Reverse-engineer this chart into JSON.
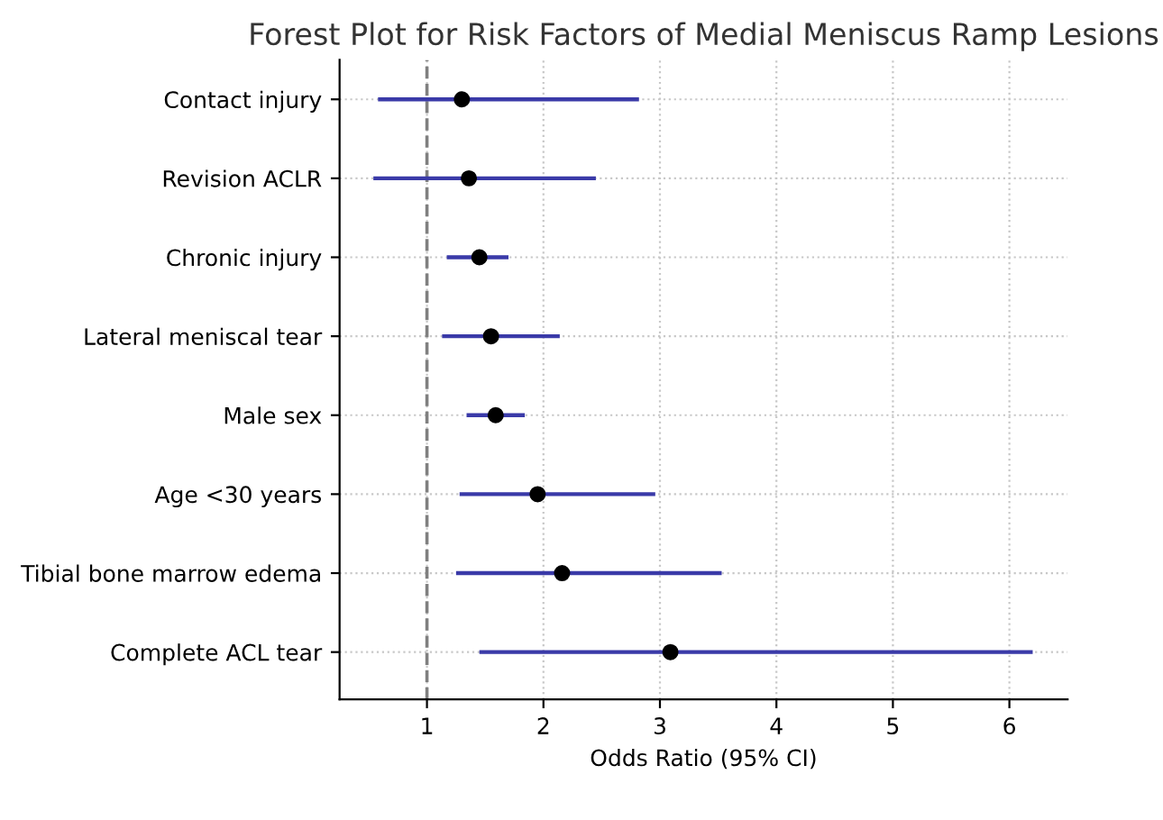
{
  "chart_data": {
    "type": "scatter",
    "orientation": "horizontal",
    "title": "Forest Plot for Risk Factors of Medial Meniscus Ramp Lesions",
    "xlabel": "Odds Ratio (95% CI)",
    "categories": [
      "Contact injury",
      "Revision ACLR",
      "Chronic injury",
      "Lateral meniscal tear",
      "Male sex",
      "Age <30 years",
      "Tibial bone marrow edema",
      "Complete ACL tear"
    ],
    "series": [
      {
        "color": "#000000",
        "values": [
          1.3,
          1.36,
          1.45,
          1.55,
          1.59,
          1.95,
          2.16,
          3.09
        ],
        "errors": [
          [
            0.58,
            2.82
          ],
          [
            0.54,
            2.45
          ],
          [
            1.17,
            1.7
          ],
          [
            1.13,
            2.14
          ],
          [
            1.34,
            1.84
          ],
          [
            1.28,
            2.96
          ],
          [
            1.25,
            3.53
          ],
          [
            1.45,
            6.2
          ]
        ]
      }
    ],
    "xlim": [
      0.25,
      6.5
    ],
    "xticks": [
      1,
      2,
      3,
      4,
      5,
      6
    ],
    "grid": true,
    "marker": "circle",
    "ref_lines": [
      {
        "axis": "x",
        "value": 1,
        "color": "#808080",
        "line_style": "dashed"
      }
    ]
  }
}
